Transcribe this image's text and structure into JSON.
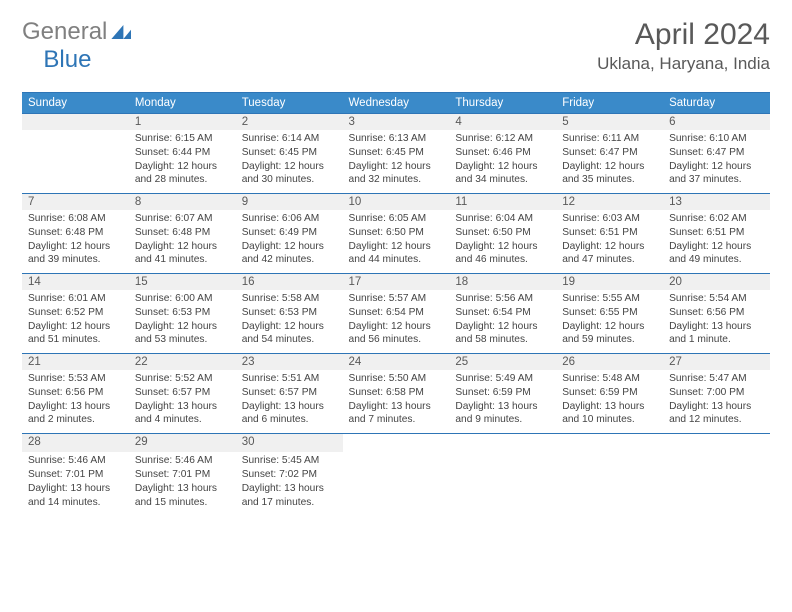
{
  "brand": {
    "part1": "General",
    "part2": "Blue"
  },
  "title": "April 2024",
  "location": "Uklana, Haryana, India",
  "colors": {
    "header_bg": "#3a8ac9",
    "border": "#2e75b6",
    "daynum_bg": "#f0f0f0",
    "text": "#595959",
    "logo_gray": "#808080",
    "logo_blue": "#2e75b6"
  },
  "typography": {
    "title_fontsize": 30,
    "location_fontsize": 17,
    "header_fontsize": 11.5,
    "cell_fontsize": 10.2
  },
  "weekdays": [
    "Sunday",
    "Monday",
    "Tuesday",
    "Wednesday",
    "Thursday",
    "Friday",
    "Saturday"
  ],
  "weeks": [
    [
      null,
      {
        "n": "1",
        "sr": "6:15 AM",
        "ss": "6:44 PM",
        "dl": "12 hours and 28 minutes."
      },
      {
        "n": "2",
        "sr": "6:14 AM",
        "ss": "6:45 PM",
        "dl": "12 hours and 30 minutes."
      },
      {
        "n": "3",
        "sr": "6:13 AM",
        "ss": "6:45 PM",
        "dl": "12 hours and 32 minutes."
      },
      {
        "n": "4",
        "sr": "6:12 AM",
        "ss": "6:46 PM",
        "dl": "12 hours and 34 minutes."
      },
      {
        "n": "5",
        "sr": "6:11 AM",
        "ss": "6:47 PM",
        "dl": "12 hours and 35 minutes."
      },
      {
        "n": "6",
        "sr": "6:10 AM",
        "ss": "6:47 PM",
        "dl": "12 hours and 37 minutes."
      }
    ],
    [
      {
        "n": "7",
        "sr": "6:08 AM",
        "ss": "6:48 PM",
        "dl": "12 hours and 39 minutes."
      },
      {
        "n": "8",
        "sr": "6:07 AM",
        "ss": "6:48 PM",
        "dl": "12 hours and 41 minutes."
      },
      {
        "n": "9",
        "sr": "6:06 AM",
        "ss": "6:49 PM",
        "dl": "12 hours and 42 minutes."
      },
      {
        "n": "10",
        "sr": "6:05 AM",
        "ss": "6:50 PM",
        "dl": "12 hours and 44 minutes."
      },
      {
        "n": "11",
        "sr": "6:04 AM",
        "ss": "6:50 PM",
        "dl": "12 hours and 46 minutes."
      },
      {
        "n": "12",
        "sr": "6:03 AM",
        "ss": "6:51 PM",
        "dl": "12 hours and 47 minutes."
      },
      {
        "n": "13",
        "sr": "6:02 AM",
        "ss": "6:51 PM",
        "dl": "12 hours and 49 minutes."
      }
    ],
    [
      {
        "n": "14",
        "sr": "6:01 AM",
        "ss": "6:52 PM",
        "dl": "12 hours and 51 minutes."
      },
      {
        "n": "15",
        "sr": "6:00 AM",
        "ss": "6:53 PM",
        "dl": "12 hours and 53 minutes."
      },
      {
        "n": "16",
        "sr": "5:58 AM",
        "ss": "6:53 PM",
        "dl": "12 hours and 54 minutes."
      },
      {
        "n": "17",
        "sr": "5:57 AM",
        "ss": "6:54 PM",
        "dl": "12 hours and 56 minutes."
      },
      {
        "n": "18",
        "sr": "5:56 AM",
        "ss": "6:54 PM",
        "dl": "12 hours and 58 minutes."
      },
      {
        "n": "19",
        "sr": "5:55 AM",
        "ss": "6:55 PM",
        "dl": "12 hours and 59 minutes."
      },
      {
        "n": "20",
        "sr": "5:54 AM",
        "ss": "6:56 PM",
        "dl": "13 hours and 1 minute."
      }
    ],
    [
      {
        "n": "21",
        "sr": "5:53 AM",
        "ss": "6:56 PM",
        "dl": "13 hours and 2 minutes."
      },
      {
        "n": "22",
        "sr": "5:52 AM",
        "ss": "6:57 PM",
        "dl": "13 hours and 4 minutes."
      },
      {
        "n": "23",
        "sr": "5:51 AM",
        "ss": "6:57 PM",
        "dl": "13 hours and 6 minutes."
      },
      {
        "n": "24",
        "sr": "5:50 AM",
        "ss": "6:58 PM",
        "dl": "13 hours and 7 minutes."
      },
      {
        "n": "25",
        "sr": "5:49 AM",
        "ss": "6:59 PM",
        "dl": "13 hours and 9 minutes."
      },
      {
        "n": "26",
        "sr": "5:48 AM",
        "ss": "6:59 PM",
        "dl": "13 hours and 10 minutes."
      },
      {
        "n": "27",
        "sr": "5:47 AM",
        "ss": "7:00 PM",
        "dl": "13 hours and 12 minutes."
      }
    ],
    [
      {
        "n": "28",
        "sr": "5:46 AM",
        "ss": "7:01 PM",
        "dl": "13 hours and 14 minutes."
      },
      {
        "n": "29",
        "sr": "5:46 AM",
        "ss": "7:01 PM",
        "dl": "13 hours and 15 minutes."
      },
      {
        "n": "30",
        "sr": "5:45 AM",
        "ss": "7:02 PM",
        "dl": "13 hours and 17 minutes."
      },
      null,
      null,
      null,
      null
    ]
  ],
  "labels": {
    "sunrise": "Sunrise:",
    "sunset": "Sunset:",
    "daylight": "Daylight:"
  }
}
